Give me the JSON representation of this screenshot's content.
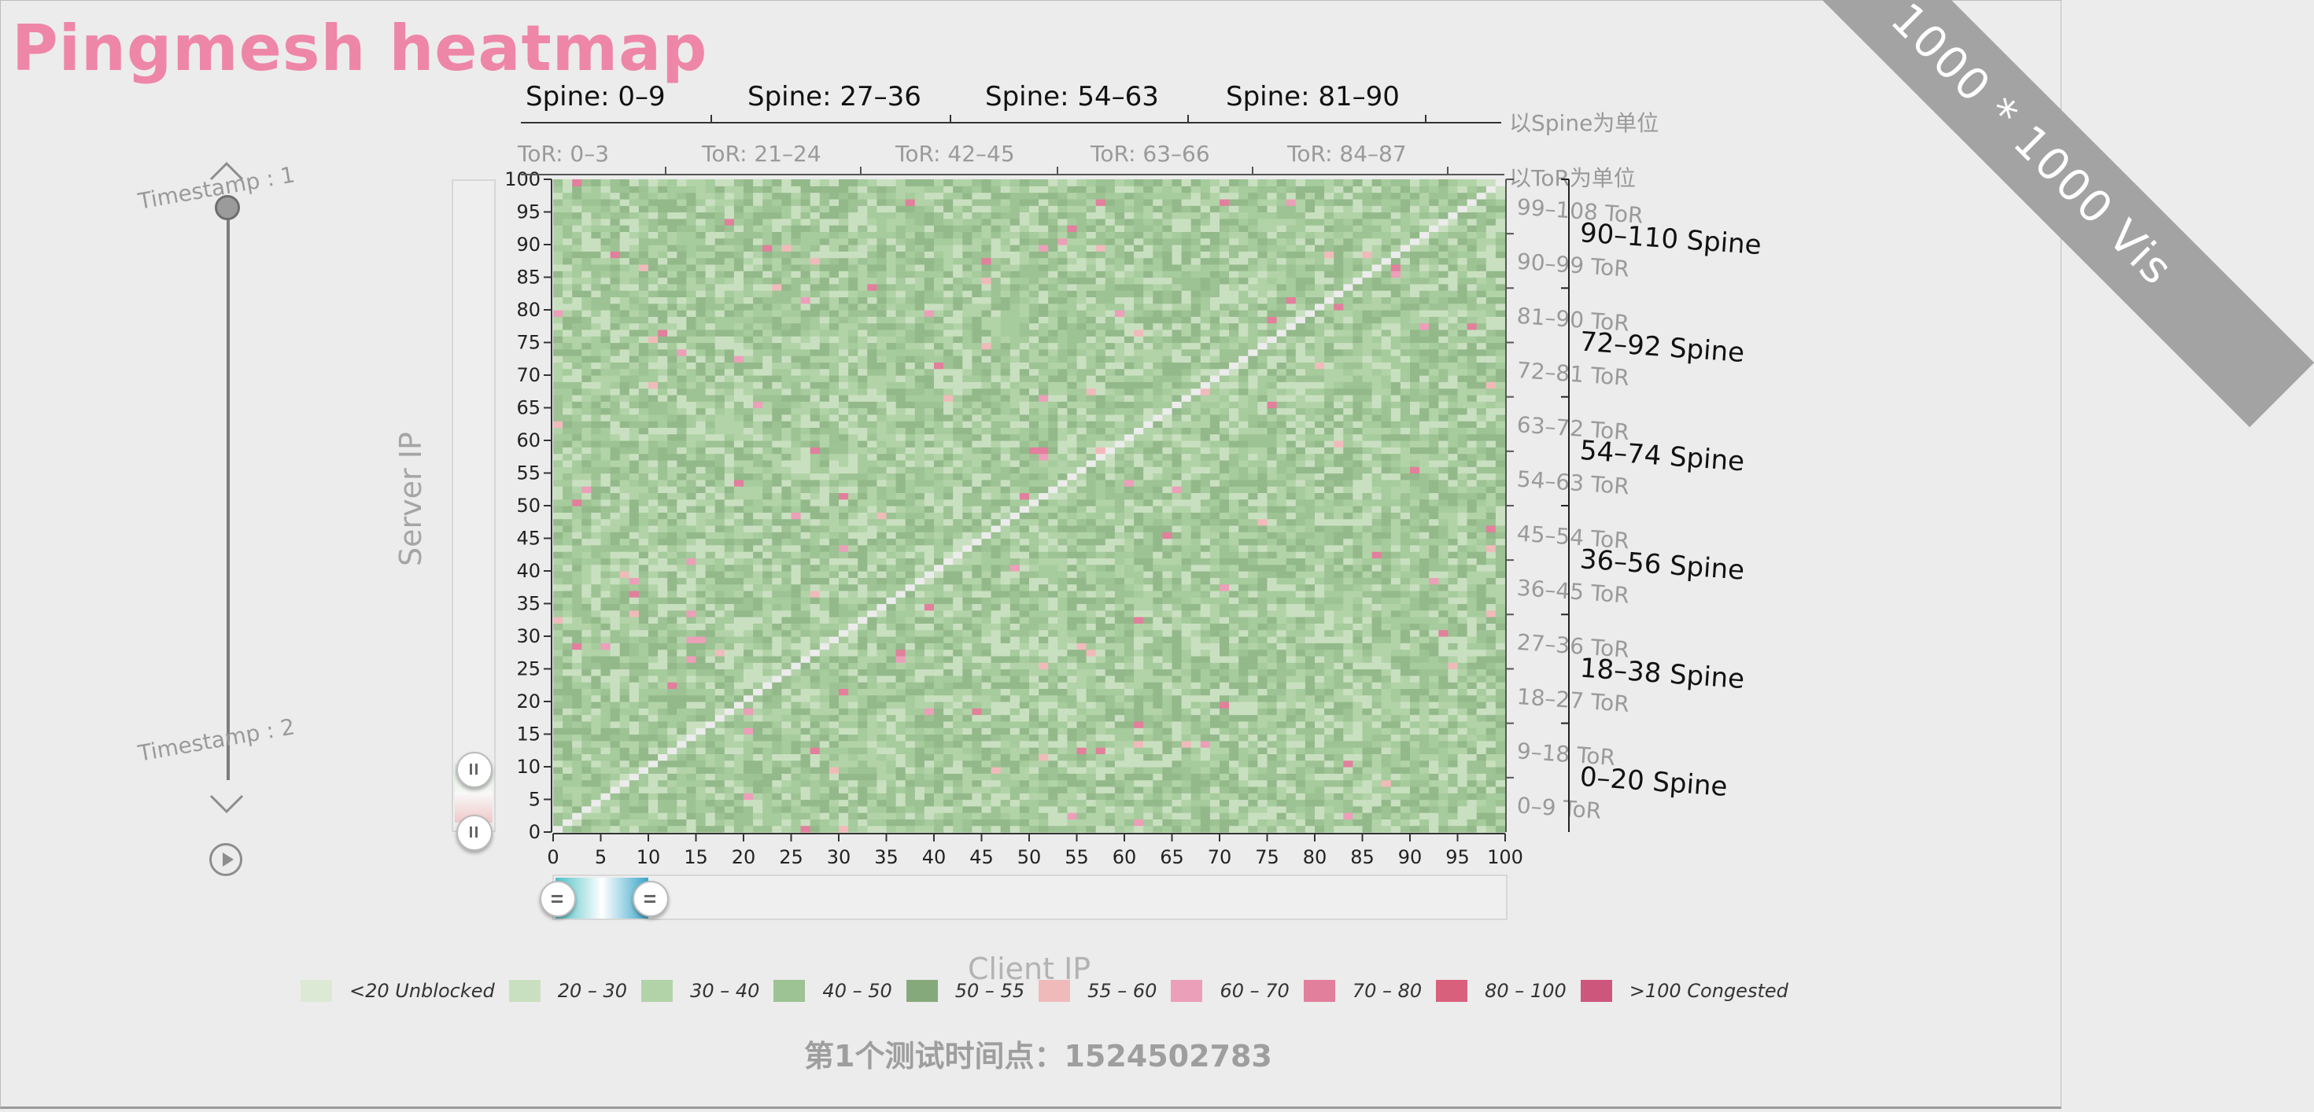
{
  "title": "Pingmesh heatmap",
  "ribbon": "1000 * 1000 Vis",
  "timeline": {
    "label_start": "Timestamp : 1",
    "label_end": "Timestamp : 2"
  },
  "chart_data": {
    "type": "heatmap",
    "title": "Pingmesh heatmap",
    "xlabel": "Client IP",
    "ylabel": "Server IP",
    "xlim": [
      0,
      100
    ],
    "ylim": [
      0,
      100
    ],
    "x_ticks": [
      0,
      5,
      10,
      15,
      20,
      25,
      30,
      35,
      40,
      45,
      50,
      55,
      60,
      65,
      70,
      75,
      80,
      85,
      90,
      95,
      100
    ],
    "y_ticks": [
      0,
      5,
      10,
      15,
      20,
      25,
      30,
      35,
      40,
      45,
      50,
      55,
      60,
      65,
      70,
      75,
      80,
      85,
      90,
      95,
      100
    ],
    "grid_size": 100,
    "diagonal": "self-pairs (i == j) shown in light grey/white",
    "value_note": "cells mostly in 20–55 (green) range with sparse pink 55–80 outliers",
    "top_axis": {
      "spine_labels": [
        "Spine: 0–9",
        "Spine: 27–36",
        "Spine: 54–63",
        "Spine: 81–90"
      ],
      "spine_unit": "以Spine为单位",
      "tor_labels": [
        "ToR: 0–3",
        "ToR: 21–24",
        "ToR: 42–45",
        "ToR: 63–66",
        "ToR: 84–87"
      ],
      "tor_unit": "以ToR为单位"
    },
    "right_axis": {
      "tor_labels": [
        "99–108 ToR",
        "90–99 ToR",
        "81–90 ToR",
        "72–81 ToR",
        "63–72 ToR",
        "54–63 ToR",
        "45–54 ToR",
        "36–45 ToR",
        "27–36 ToR",
        "18–27 ToR",
        "9–18 ToR",
        "0–9 ToR"
      ],
      "spine_labels": [
        "90–110 Spine",
        "72–92 Spine",
        "54–74 Spine",
        "36–56 Spine",
        "18–38 Spine",
        "0–20 Spine"
      ]
    },
    "legend": [
      {
        "label": "<20 Unblocked",
        "color": "#dbe9d5"
      },
      {
        "label": "20 – 30",
        "color": "#c9e0c0"
      },
      {
        "label": "30 – 40",
        "color": "#b2d3a8"
      },
      {
        "label": "40 – 50",
        "color": "#9dc293"
      },
      {
        "label": "50 – 55",
        "color": "#86a97c"
      },
      {
        "label": "55 – 60",
        "color": "#f1baba"
      },
      {
        "label": "60 – 70",
        "color": "#ec9fb9"
      },
      {
        "label": "70 – 80",
        "color": "#e27f9c"
      },
      {
        "label": "80 – 100",
        "color": "#d9607d"
      },
      {
        "label": ">100 Congested",
        "color": "#cd567c"
      }
    ]
  },
  "footer": "第1个测试时间点：1524502783"
}
